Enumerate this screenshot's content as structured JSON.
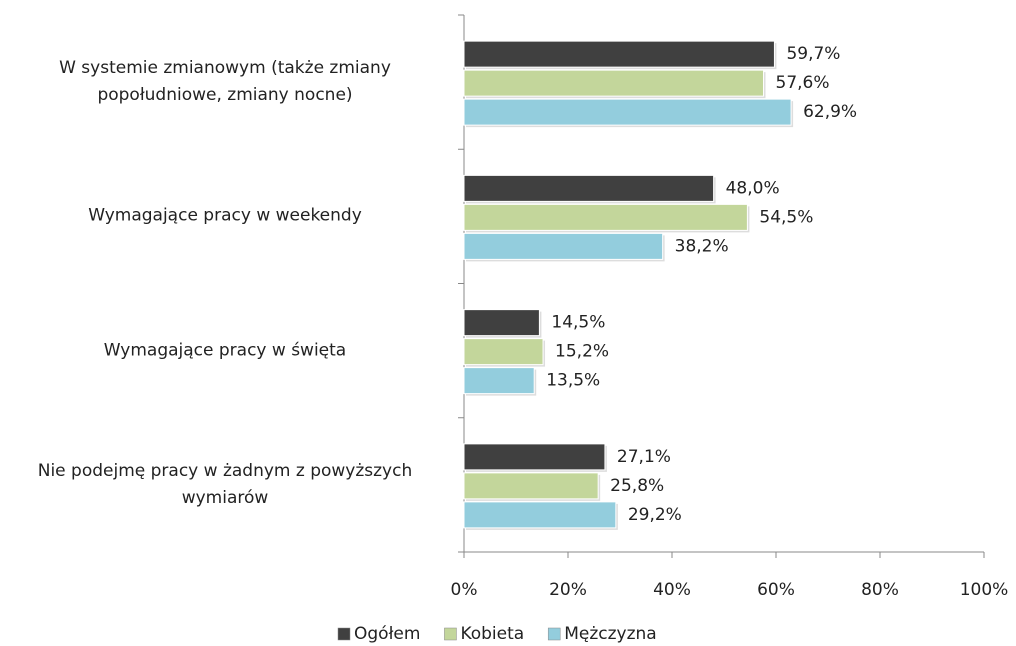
{
  "chart_data": {
    "type": "hbar",
    "categories": [
      "W systemie zmianowym (także zmiany\npopołudniowe,  zmiany nocne)",
      "Wymagające pracy w weekendy",
      "Wymagające pracy w święta",
      "Nie podejmę pracy w żadnym z powyższych\nwymiarów"
    ],
    "series": [
      {
        "name": "Ogółem",
        "color": "#404040",
        "values": [
          59.7,
          48.0,
          14.5,
          27.1
        ],
        "value_labels": [
          "59,7%",
          "48,0%",
          "14,5%",
          "27,1%"
        ]
      },
      {
        "name": "Kobieta",
        "color": "#c3d69b",
        "values": [
          57.6,
          54.5,
          15.2,
          25.8
        ],
        "value_labels": [
          "57,6%",
          "54,5%",
          "15,2%",
          "25,8%"
        ]
      },
      {
        "name": "Mężczyzna",
        "color": "#93cddd",
        "values": [
          62.9,
          38.2,
          13.5,
          29.2
        ],
        "value_labels": [
          "62,9%",
          "38,2%",
          "13,5%",
          "29,2%"
        ]
      }
    ],
    "xlim": [
      0,
      100
    ],
    "xticks": [
      {
        "value": 0,
        "label": "0%"
      },
      {
        "value": 20,
        "label": "20%"
      },
      {
        "value": 40,
        "label": "40%"
      },
      {
        "value": 60,
        "label": "60%"
      },
      {
        "value": 80,
        "label": "80%"
      },
      {
        "value": 100,
        "label": "100%"
      }
    ],
    "legend": "bottom"
  }
}
